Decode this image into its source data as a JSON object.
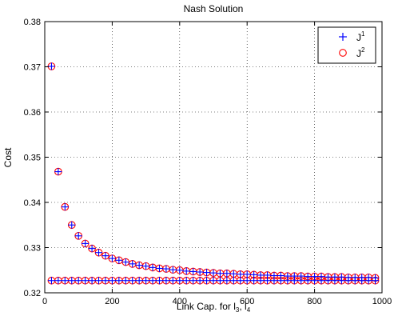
{
  "chart_data": {
    "type": "scatter",
    "title": "Nash Solution",
    "xlabel_parts": [
      "Link Cap. for l",
      "3",
      ", l",
      "4"
    ],
    "ylabel": "Cost",
    "xlim": [
      0,
      1000
    ],
    "ylim": [
      0.32,
      0.38
    ],
    "xticks": [
      0,
      200,
      400,
      600,
      800,
      1000
    ],
    "yticks": [
      0.32,
      0.33,
      0.34,
      0.35,
      0.36,
      0.37,
      0.38
    ],
    "xtick_labels": [
      "0",
      "200",
      "400",
      "600",
      "800",
      "1000"
    ],
    "ytick_labels": [
      "0.32",
      "0.33",
      "0.34",
      "0.35",
      "0.36",
      "0.37",
      "0.38"
    ],
    "grid": true,
    "legend_position": "top-right",
    "x": [
      20,
      40,
      60,
      80,
      100,
      120,
      140,
      160,
      180,
      200,
      220,
      240,
      260,
      280,
      300,
      320,
      340,
      360,
      380,
      400,
      420,
      440,
      460,
      480,
      500,
      520,
      540,
      560,
      580,
      600,
      620,
      640,
      660,
      680,
      700,
      720,
      740,
      760,
      780,
      800,
      820,
      840,
      860,
      880,
      900,
      920,
      940,
      960,
      980
    ],
    "series": [
      {
        "name": "J",
        "name_sup": "1",
        "marker": "plus",
        "color": "#0000ff",
        "branch_upper": [
          0.3701,
          0.3468,
          0.339,
          0.335,
          0.3326,
          0.3309,
          0.3298,
          0.3289,
          0.3282,
          0.3276,
          0.3272,
          0.3268,
          0.3264,
          0.3261,
          0.3259,
          0.3256,
          0.3254,
          0.3253,
          0.3251,
          0.325,
          0.3248,
          0.3247,
          0.3246,
          0.3245,
          0.3244,
          0.3243,
          0.3243,
          0.3242,
          0.3241,
          0.3241,
          0.324,
          0.3239,
          0.3239,
          0.3238,
          0.3238,
          0.3237,
          0.3237,
          0.3237,
          0.3236,
          0.3236,
          0.3236,
          0.3235,
          0.3235,
          0.3235,
          0.3234,
          0.3234,
          0.3234,
          0.3234,
          0.3233
        ],
        "branch_lower": 0.3227
      },
      {
        "name": "J",
        "name_sup": "2",
        "marker": "circle",
        "color": "#ff0000",
        "branch_upper": [
          0.3701,
          0.3468,
          0.339,
          0.335,
          0.3326,
          0.3309,
          0.3298,
          0.3289,
          0.3282,
          0.3276,
          0.3272,
          0.3268,
          0.3264,
          0.3261,
          0.3259,
          0.3256,
          0.3254,
          0.3253,
          0.3251,
          0.325,
          0.3248,
          0.3247,
          0.3246,
          0.3245,
          0.3244,
          0.3243,
          0.3243,
          0.3242,
          0.3241,
          0.3241,
          0.324,
          0.3239,
          0.3239,
          0.3238,
          0.3238,
          0.3237,
          0.3237,
          0.3237,
          0.3236,
          0.3236,
          0.3236,
          0.3235,
          0.3235,
          0.3235,
          0.3234,
          0.3234,
          0.3234,
          0.3234,
          0.3233
        ],
        "branch_lower": 0.3227
      }
    ]
  }
}
